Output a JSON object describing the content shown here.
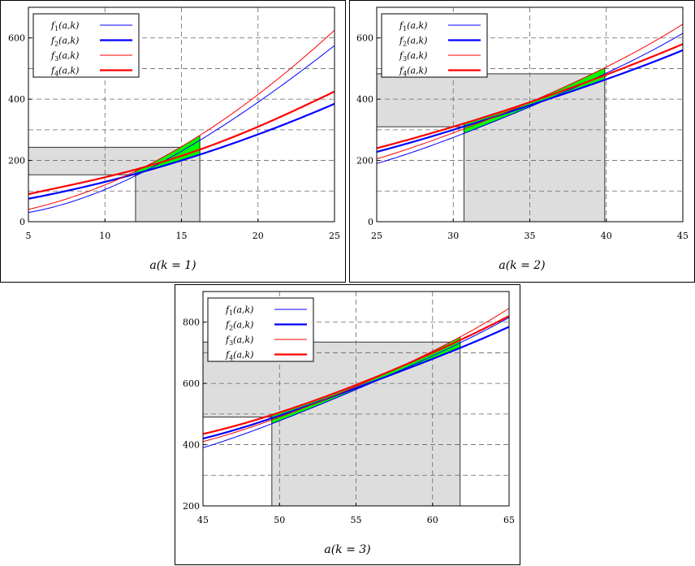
{
  "chart_data": [
    {
      "type": "line",
      "caption": "a(k = 1)",
      "xlim": [
        5,
        25
      ],
      "ylim": [
        0,
        700
      ],
      "xticks": [
        5,
        10,
        15,
        20,
        25
      ],
      "yticks": [
        0,
        200,
        400,
        600
      ],
      "x_grid": [
        10,
        15,
        20
      ],
      "y_grid": [
        100,
        200,
        300,
        400,
        500,
        600
      ],
      "legend_position": "top-left",
      "series": [
        {
          "name": "f1(a,k)",
          "x": [
            5,
            10,
            15,
            20,
            25
          ],
          "y": [
            30,
            105,
            230,
            390,
            575
          ],
          "color": "#0000ff",
          "width": "thin"
        },
        {
          "name": "f2(a,k)",
          "x": [
            5,
            10,
            15,
            20,
            25
          ],
          "y": [
            75,
            130,
            200,
            285,
            385
          ],
          "color": "#0000ff",
          "width": "thick"
        },
        {
          "name": "f3(a,k)",
          "x": [
            5,
            10,
            15,
            20,
            25
          ],
          "y": [
            40,
            120,
            245,
            415,
            625
          ],
          "color": "#ff0000",
          "width": "thin"
        },
        {
          "name": "f4(a,k)",
          "x": [
            5,
            10,
            15,
            20,
            25
          ],
          "y": [
            90,
            145,
            215,
            310,
            425
          ],
          "color": "#ff0000",
          "width": "thick"
        }
      ],
      "shaded_box": {
        "x0": 12,
        "x1": 16.2,
        "y_low": 153,
        "y_high": 243
      },
      "lens_x": [
        12,
        16.2
      ]
    },
    {
      "type": "line",
      "caption": "a(k = 2)",
      "xlim": [
        25,
        45
      ],
      "ylim": [
        0,
        700
      ],
      "xticks": [
        25,
        30,
        35,
        40,
        45
      ],
      "yticks": [
        0,
        200,
        400,
        600
      ],
      "x_grid": [
        30,
        35,
        40
      ],
      "y_grid": [
        100,
        200,
        300,
        400,
        500,
        600
      ],
      "legend_position": "top-left",
      "series": [
        {
          "name": "f1(a,k)",
          "x": [
            25,
            30,
            35,
            40,
            45
          ],
          "y": [
            190,
            275,
            375,
            485,
            615
          ],
          "color": "#0000ff",
          "width": "thin"
        },
        {
          "name": "f2(a,k)",
          "x": [
            25,
            30,
            35,
            40,
            45
          ],
          "y": [
            228,
            300,
            380,
            465,
            560
          ],
          "color": "#0000ff",
          "width": "thick"
        },
        {
          "name": "f3(a,k)",
          "x": [
            25,
            30,
            35,
            40,
            45
          ],
          "y": [
            205,
            290,
            390,
            505,
            645
          ],
          "color": "#ff0000",
          "width": "thin"
        },
        {
          "name": "f4(a,k)",
          "x": [
            25,
            30,
            35,
            40,
            45
          ],
          "y": [
            240,
            310,
            390,
            480,
            580
          ],
          "color": "#ff0000",
          "width": "thick"
        }
      ],
      "shaded_box": {
        "x0": 30.7,
        "x1": 39.9,
        "y_low": 310,
        "y_high": 483
      },
      "lens_x": [
        30.7,
        39.9
      ]
    },
    {
      "type": "line",
      "caption": "a(k = 3)",
      "xlim": [
        45,
        65
      ],
      "ylim": [
        200,
        900
      ],
      "xticks": [
        45,
        50,
        55,
        60,
        65
      ],
      "yticks": [
        200,
        400,
        600,
        800
      ],
      "x_grid": [
        50,
        55,
        60
      ],
      "y_grid": [
        300,
        400,
        500,
        600,
        700,
        800
      ],
      "legend_position": "top-left",
      "series": [
        {
          "name": "f1(a,k)",
          "x": [
            45,
            50,
            55,
            60,
            65
          ],
          "y": [
            390,
            478,
            580,
            690,
            815
          ],
          "color": "#0000ff",
          "width": "thin"
        },
        {
          "name": "f2(a,k)",
          "x": [
            45,
            50,
            55,
            60,
            65
          ],
          "y": [
            420,
            495,
            585,
            680,
            785
          ],
          "color": "#0000ff",
          "width": "thick"
        },
        {
          "name": "f3(a,k)",
          "x": [
            45,
            50,
            55,
            60,
            65
          ],
          "y": [
            410,
            490,
            590,
            705,
            845
          ],
          "color": "#ff0000",
          "width": "thin"
        },
        {
          "name": "f4(a,k)",
          "x": [
            45,
            50,
            55,
            60,
            65
          ],
          "y": [
            435,
            505,
            595,
            700,
            820
          ],
          "color": "#ff0000",
          "width": "thick"
        }
      ],
      "shaded_box": {
        "x0": 49.5,
        "x1": 61.8,
        "y_low": 490,
        "y_high": 735
      },
      "lens_x": [
        49.5,
        61.8
      ]
    }
  ],
  "colors": {
    "blue": "#0000ff",
    "red": "#ff0000",
    "lens_fill": "#00ff00",
    "box_fill": "#dddddd",
    "grid": "#666666"
  }
}
